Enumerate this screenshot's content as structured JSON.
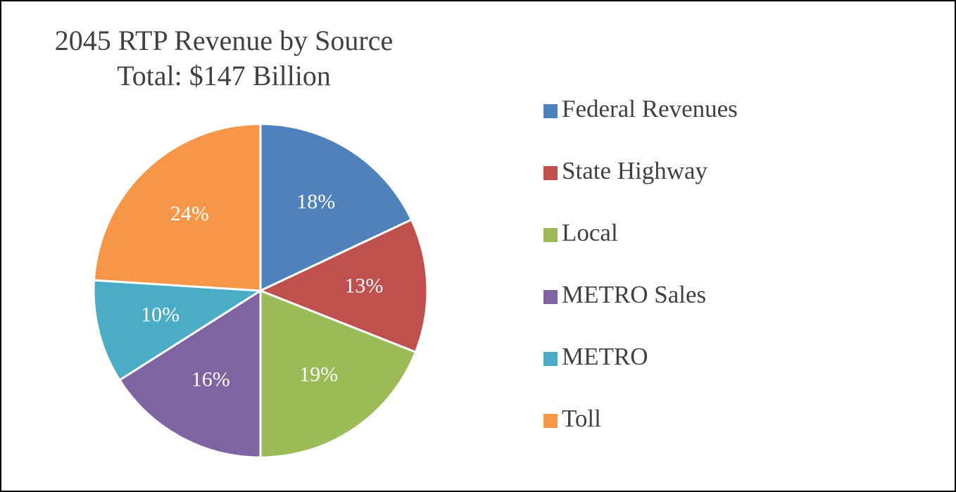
{
  "chart_data": {
    "type": "pie",
    "title": "2045 RTP Revenue by Source",
    "subtitle": "Total: $147 Billion",
    "categories": [
      "Federal Revenues",
      "State Highway",
      "Local",
      "METRO Sales",
      "METRO",
      "Toll"
    ],
    "values": [
      18,
      13,
      19,
      16,
      10,
      24
    ],
    "value_labels": [
      "18%",
      "13%",
      "19%",
      "16%",
      "10%",
      "24%"
    ],
    "colors": [
      "#4f81bd",
      "#c0504d",
      "#9bbb59",
      "#8064a2",
      "#4bacc6",
      "#f79646"
    ],
    "legend": "right"
  }
}
